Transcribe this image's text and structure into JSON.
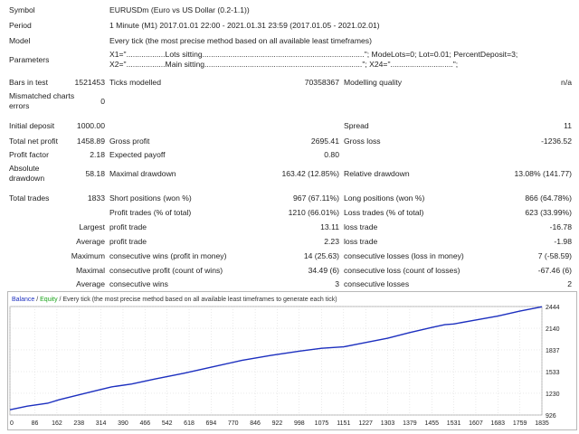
{
  "report": {
    "symbol_label": "Symbol",
    "symbol_value": "EURUSDm (Euro vs US Dollar (0.2-1.1))",
    "period_label": "Period",
    "period_value": "1 Minute (M1) 2017.01.01 22:00 - 2021.01.31 23:59 (2017.01.05 - 2021.02.01)",
    "model_label": "Model",
    "model_value": "Every tick (the most precise method based on all available least timeframes)",
    "parameters_label": "Parameters",
    "parameters_line1": "X1=\"..................Lots sitting...........................................................................\"; ModeLots=0; Lot=0.01; PercentDeposit=3;",
    "parameters_line2": "X2=\"..................Main sitting.........................................................................\"; X24=\".............................\";",
    "bars_label": "Bars in test",
    "bars_value": "1521453",
    "ticks_label": "Ticks modelled",
    "ticks_value": "70358367",
    "quality_label": "Modelling quality",
    "quality_value": "n/a",
    "mismatch_label_1": "Mismatched charts",
    "mismatch_label_2": "errors",
    "mismatch_value": "0",
    "initial_deposit_label": "Initial deposit",
    "initial_deposit_value": "1000.00",
    "spread_label": "Spread",
    "spread_value": "11",
    "net_profit_label": "Total net profit",
    "net_profit_value": "1458.89",
    "gross_profit_label": "Gross profit",
    "gross_profit_value": "2695.41",
    "gross_loss_label": "Gross loss",
    "gross_loss_value": "-1236.52",
    "profit_factor_label": "Profit factor",
    "profit_factor_value": "2.18",
    "expected_payoff_label": "Expected payoff",
    "expected_payoff_value": "0.80",
    "abs_dd_label_1": "Absolute",
    "abs_dd_label_2": "drawdown",
    "abs_dd_value": "58.18",
    "max_dd_label": "Maximal drawdown",
    "max_dd_value": "163.42 (12.85%)",
    "rel_dd_label": "Relative drawdown",
    "rel_dd_value": "13.08% (141.77)",
    "total_trades_label": "Total trades",
    "total_trades_value": "1833",
    "short_label": "Short positions (won %)",
    "short_value": "967 (67.11%)",
    "long_label": "Long positions (won %)",
    "long_value": "866 (64.78%)",
    "profit_trades_label": "Profit trades (% of total)",
    "profit_trades_value": "1210 (66.01%)",
    "loss_trades_label": "Loss trades (% of total)",
    "loss_trades_value": "623 (33.99%)",
    "largest_label": "Largest",
    "largest_profit_label": "profit trade",
    "largest_profit_value": "13.11",
    "largest_loss_label": "loss trade",
    "largest_loss_value": "-16.78",
    "average_label": "Average",
    "average_profit_label": "profit trade",
    "average_profit_value": "2.23",
    "average_loss_label": "loss trade",
    "average_loss_value": "-1.98",
    "maximum_label": "Maximum",
    "max_cons_wins_label": "consecutive wins (profit in money)",
    "max_cons_wins_value": "14 (25.63)",
    "max_cons_losses_label": "consecutive losses (loss in money)",
    "max_cons_losses_value": "7 (-58.59)",
    "maximal_label": "Maximal",
    "maximal_cons_profit_label": "consecutive profit (count of wins)",
    "maximal_cons_profit_value": "34.49 (6)",
    "maximal_cons_loss_label": "consecutive loss (count of losses)",
    "maximal_cons_loss_value": "-67.46 (6)",
    "avg2_label": "Average",
    "avg_cons_wins_label": "consecutive wins",
    "avg_cons_wins_value": "3",
    "avg_cons_losses_label": "consecutive losses",
    "avg_cons_losses_value": "2"
  },
  "chart_legend": {
    "balance": "Balance",
    "sep": " / ",
    "equity": "Equity",
    "rest": " / Every tick (the most precise method based on all available least timeframes to generate each tick)"
  },
  "colors": {
    "balance": "#1c2fbf",
    "equity": "#19a319",
    "grid": "#d4d4d4"
  },
  "chart_data": {
    "type": "line",
    "x_ticks": [
      "0",
      "86",
      "162",
      "238",
      "314",
      "390",
      "466",
      "542",
      "618",
      "694",
      "770",
      "846",
      "922",
      "998",
      "1075",
      "1151",
      "1227",
      "1303",
      "1379",
      "1455",
      "1531",
      "1607",
      "1683",
      "1759",
      "1835"
    ],
    "y_ticks": [
      "2444",
      "2140",
      "1837",
      "1533",
      "1230",
      "926"
    ],
    "grid": true,
    "xlim": [
      0,
      1835
    ],
    "ylim": [
      926,
      2444
    ],
    "series": [
      {
        "name": "Balance",
        "x": [
          0,
          60,
          130,
          170,
          230,
          300,
          350,
          420,
          500,
          600,
          700,
          800,
          900,
          1000,
          1075,
          1151,
          1227,
          1303,
          1379,
          1455,
          1500,
          1531,
          1600,
          1683,
          1759,
          1835
        ],
        "y": [
          1000,
          1050,
          1090,
          1140,
          1200,
          1270,
          1320,
          1360,
          1430,
          1510,
          1600,
          1690,
          1760,
          1820,
          1860,
          1880,
          1940,
          2000,
          2080,
          2150,
          2190,
          2200,
          2250,
          2310,
          2380,
          2440
        ]
      }
    ]
  }
}
